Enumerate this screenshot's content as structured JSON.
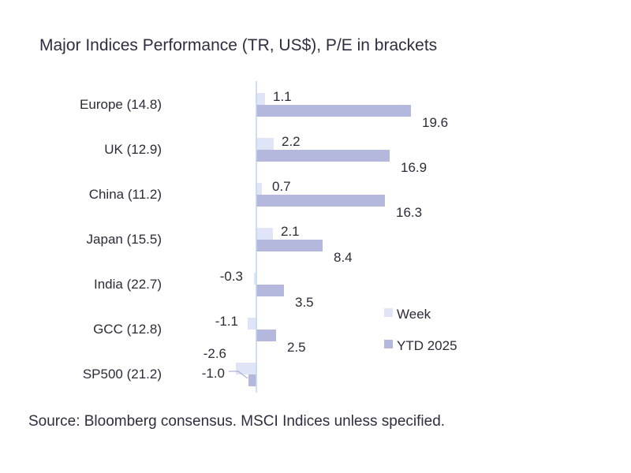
{
  "chart_data": {
    "type": "bar",
    "orientation": "horizontal",
    "title": "Major Indices Performance (TR, US$), P/E in brackets",
    "source": "Source: Bloomberg consensus. MSCI Indices unless specified.",
    "categories": [
      "Europe (14.8)",
      "UK (12.9)",
      "China (11.2)",
      "Japan (15.5)",
      "India (22.7)",
      "GCC (12.8)",
      "SP500 (21.2)"
    ],
    "series": [
      {
        "name": "Week",
        "values": [
          1.1,
          2.2,
          0.7,
          2.1,
          -0.3,
          -1.1,
          -2.6
        ],
        "color": "#dfe4f7"
      },
      {
        "name": "YTD 2025",
        "values": [
          19.6,
          16.9,
          16.3,
          8.4,
          3.5,
          2.5,
          -1.0
        ],
        "color": "#b4b8dc"
      }
    ],
    "value_labels": {
      "week": [
        "1.1",
        "2.2",
        "0.7",
        "2.1",
        "-0.3",
        "-1.1",
        "-2.6"
      ],
      "ytd": [
        "19.6",
        "16.9",
        "16.3",
        "8.4",
        "3.5",
        "2.5",
        "-1.0"
      ]
    },
    "axis_color": "#bcd6ee",
    "legend_position": "bottom-right",
    "grid": false
  }
}
